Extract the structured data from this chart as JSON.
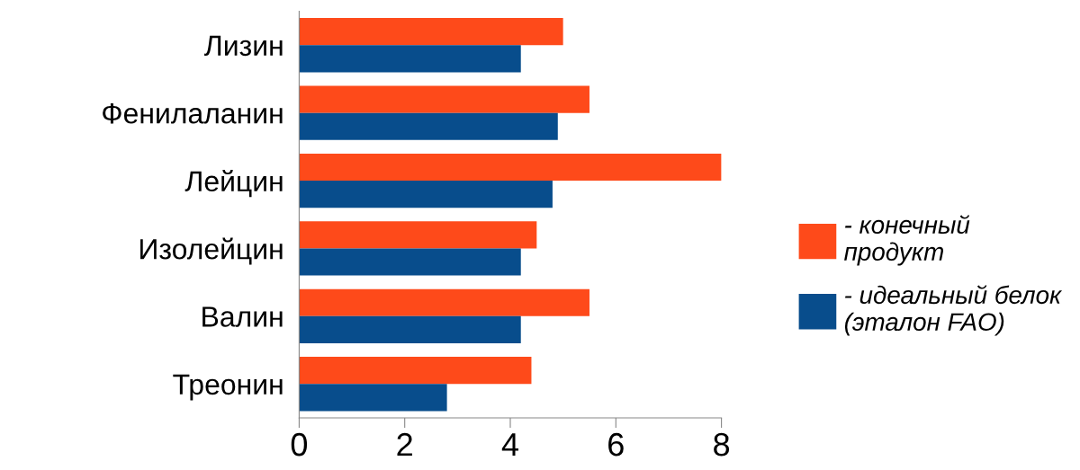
{
  "chart_data": {
    "type": "bar",
    "orientation": "horizontal",
    "categories": [
      "Лизин",
      "Фенилаланин",
      "Лейцин",
      "Изолейцин",
      "Валин",
      "Треонин"
    ],
    "series": [
      {
        "name": "- конечный\nпродукт",
        "color": "#fe4a1a",
        "values": [
          5.0,
          5.5,
          8.0,
          4.5,
          5.5,
          4.4
        ]
      },
      {
        "name": "- идеальный белок\n(эталон FAO)",
        "color": "#084d8c",
        "values": [
          4.2,
          4.9,
          4.8,
          4.2,
          4.2,
          2.8
        ]
      }
    ],
    "xlim": [
      0,
      8
    ],
    "xticks": [
      0,
      2,
      4,
      6,
      8
    ],
    "grid": false,
    "legend": "right"
  }
}
